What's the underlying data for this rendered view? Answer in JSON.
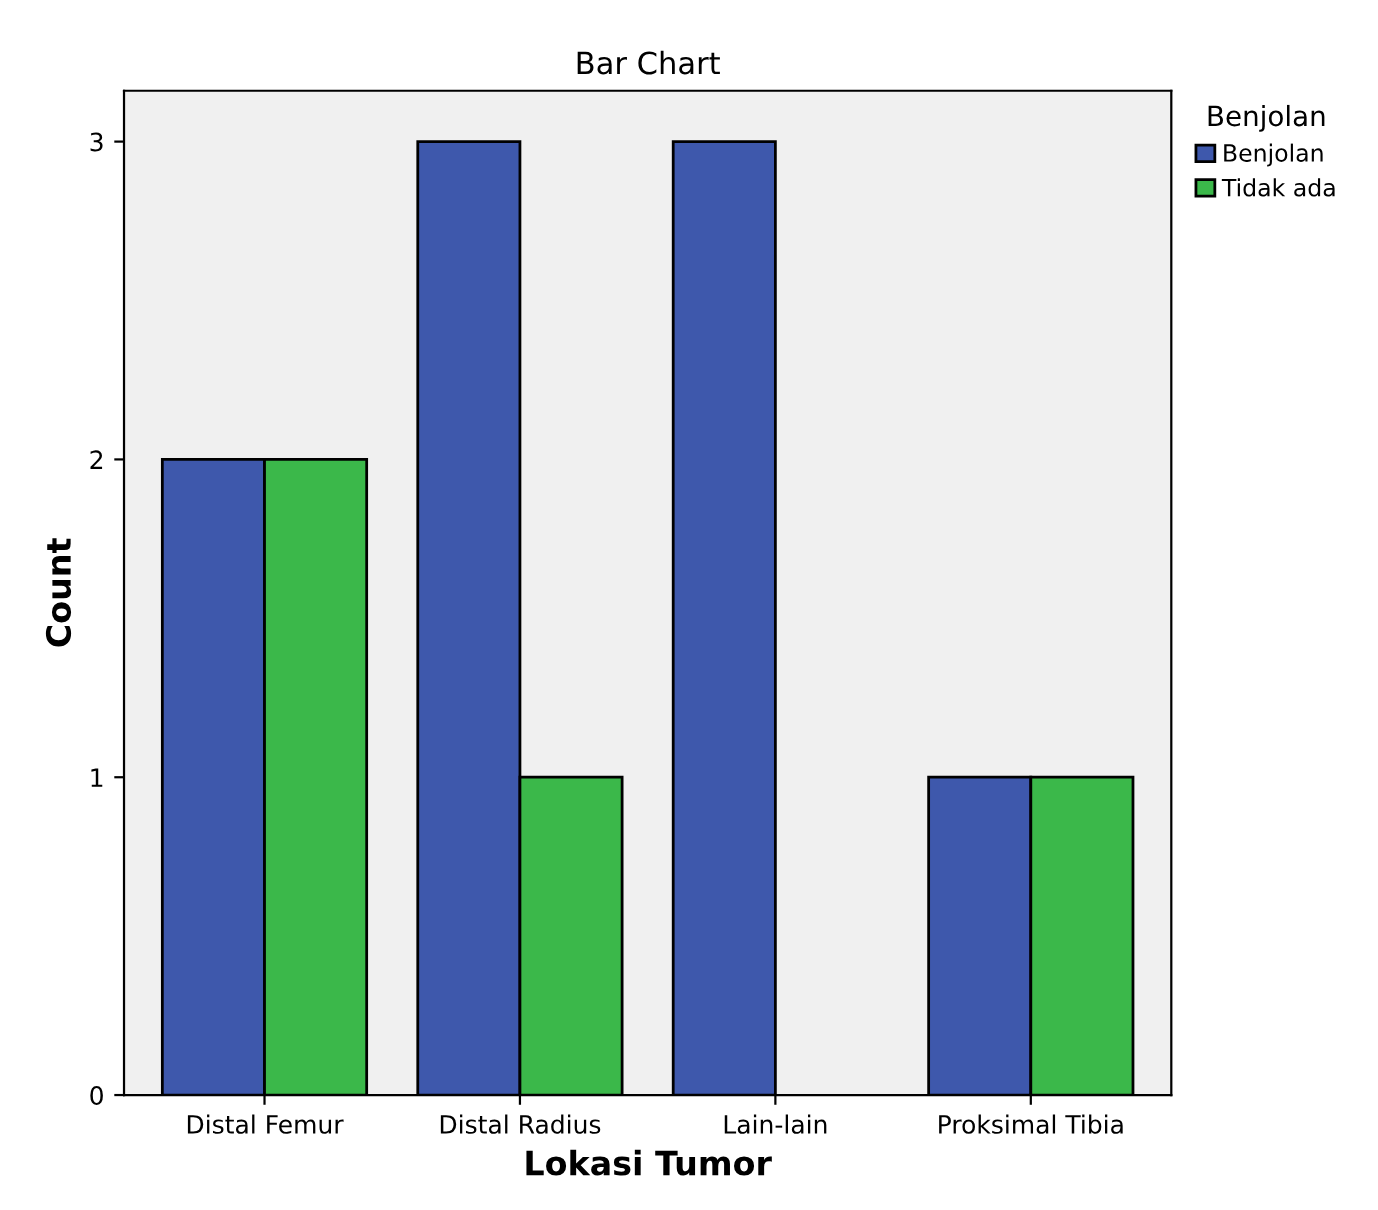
{
  "chart_data": {
    "type": "bar",
    "title": "Bar Chart",
    "xlabel": "Lokasi Tumor",
    "ylabel": "Count",
    "legend_title": "Benjolan",
    "categories": [
      "Distal Femur",
      "Distal Radius",
      "Lain-lain",
      "Proksimal Tibia"
    ],
    "series": [
      {
        "name": "Benjolan",
        "color": "#3e58ac",
        "values": [
          2,
          3,
          3,
          1
        ]
      },
      {
        "name": "Tidak ada",
        "color": "#3bb84a",
        "values": [
          2,
          1,
          null,
          1
        ]
      }
    ],
    "ylim": [
      0,
      3.16
    ],
    "yticks": [
      0,
      1,
      2,
      3
    ],
    "grid": false,
    "legend": "top right"
  }
}
